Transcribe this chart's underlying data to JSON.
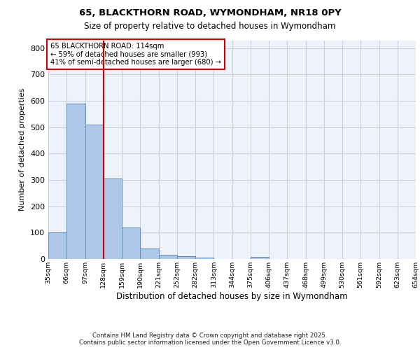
{
  "title1": "65, BLACKTHORN ROAD, WYMONDHAM, NR18 0PY",
  "title2": "Size of property relative to detached houses in Wymondham",
  "xlabel": "Distribution of detached houses by size in Wymondham",
  "ylabel": "Number of detached properties",
  "bar_values": [
    100,
    590,
    510,
    305,
    120,
    40,
    17,
    10,
    5,
    0,
    0,
    8,
    0,
    0,
    0,
    0,
    0,
    0,
    0,
    0
  ],
  "bin_labels": [
    "35sqm",
    "66sqm",
    "97sqm",
    "128sqm",
    "159sqm",
    "190sqm",
    "221sqm",
    "252sqm",
    "282sqm",
    "313sqm",
    "344sqm",
    "375sqm",
    "406sqm",
    "437sqm",
    "468sqm",
    "499sqm",
    "530sqm",
    "561sqm",
    "592sqm",
    "623sqm",
    "654sqm"
  ],
  "bar_color": "#aec6e8",
  "bar_edge_color": "#5591c4",
  "vline_x": 2.5,
  "vline_color": "#cc0000",
  "annotation_text": "65 BLACKTHORN ROAD: 114sqm\n← 59% of detached houses are smaller (993)\n41% of semi-detached houses are larger (680) →",
  "annotation_box_color": "#ffffff",
  "annotation_box_edge": "#cc0000",
  "grid_color": "#c8d0e0",
  "background_color": "#eef2fb",
  "ylim": [
    0,
    830
  ],
  "yticks": [
    0,
    100,
    200,
    300,
    400,
    500,
    600,
    700,
    800
  ],
  "footer_line1": "Contains HM Land Registry data © Crown copyright and database right 2025.",
  "footer_line2": "Contains public sector information licensed under the Open Government Licence v3.0."
}
